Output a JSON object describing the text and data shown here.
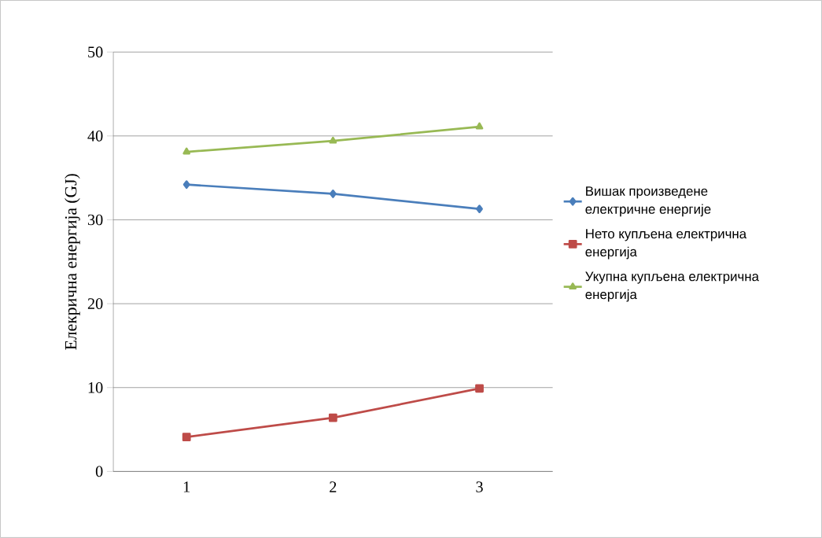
{
  "chart_data": {
    "type": "line",
    "ylabel": "Елекрична енергија (GJ)",
    "categories": [
      "1",
      "2",
      "3"
    ],
    "series": [
      {
        "name": "Вишак произведене електричне енергије",
        "color": "#4a7ebb",
        "marker": "diamond",
        "values": [
          34.2,
          33.1,
          31.3
        ]
      },
      {
        "name": "Нето купљена електрична енергија",
        "color": "#be4b48",
        "marker": "square",
        "values": [
          4.1,
          6.4,
          9.9
        ]
      },
      {
        "name": "Укупна купљена електрична енергија",
        "color": "#98b954",
        "marker": "triangle",
        "values": [
          38.1,
          39.4,
          41.1
        ]
      }
    ],
    "ylim": [
      0,
      50
    ],
    "yticks": [
      0,
      10,
      20,
      30,
      40,
      50
    ],
    "grid": "y",
    "legend": "right"
  }
}
